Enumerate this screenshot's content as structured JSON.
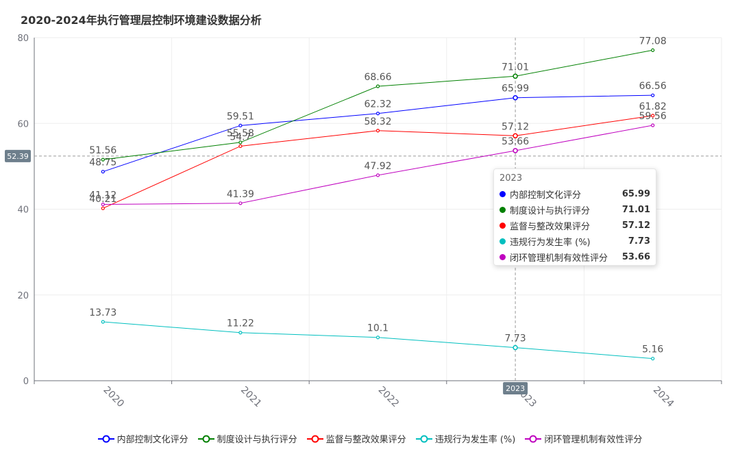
{
  "chart_data": {
    "type": "line",
    "title": "2020-2024年执行管理层控制环境建设数据分析",
    "categories": [
      "2020",
      "2021",
      "2022",
      "2023",
      "2024"
    ],
    "ylim": [
      0,
      80
    ],
    "yticks": [
      0,
      20,
      40,
      60,
      80
    ],
    "grid": true,
    "legend_position": "bottom",
    "series": [
      {
        "name": "内部控制文化评分",
        "color": "#0000ff",
        "values": [
          48.75,
          59.51,
          62.32,
          65.99,
          66.56
        ],
        "labels": [
          "48.75",
          "59.51",
          "62.32",
          "65.99",
          "66.56"
        ]
      },
      {
        "name": "制度设计与执行评分",
        "color": "#008000",
        "values": [
          51.56,
          55.58,
          68.66,
          71.01,
          77.08
        ],
        "labels": [
          "51.56",
          "55.58",
          "68.66",
          "71.01",
          "77.08"
        ]
      },
      {
        "name": "监督与整改效果评分",
        "color": "#ff0000",
        "values": [
          40.21,
          54.7,
          58.32,
          57.12,
          61.82
        ],
        "labels": [
          "40.21",
          "54.7",
          "58.32",
          "57.12",
          "61.82"
        ]
      },
      {
        "name": "违规行为发生率 (%)",
        "color": "#00bfbf",
        "values": [
          13.73,
          11.22,
          10.1,
          7.73,
          5.16
        ],
        "labels": [
          "13.73",
          "11.22",
          "10.1",
          "7.73",
          "5.16"
        ]
      },
      {
        "name": "闭环管理机制有效性评分",
        "color": "#bf00bf",
        "values": [
          41.12,
          41.39,
          47.92,
          53.66,
          59.56
        ],
        "labels": [
          "41.12",
          "41.39",
          "47.92",
          "53.66",
          "59.56"
        ]
      }
    ],
    "crosshair": {
      "x_category": "2023",
      "y_value": 52.39,
      "x_label": "2023",
      "y_label": "52.39"
    },
    "tooltip": {
      "header": "2023",
      "rows": [
        {
          "name": "内部控制文化评分",
          "value": "65.99",
          "color": "#0000ff"
        },
        {
          "name": "制度设计与执行评分",
          "value": "71.01",
          "color": "#008000"
        },
        {
          "name": "监督与整改效果评分",
          "value": "57.12",
          "color": "#ff0000"
        },
        {
          "name": "违规行为发生率 (%)",
          "value": "7.73",
          "color": "#00bfbf"
        },
        {
          "name": "闭环管理机制有效性评分",
          "value": "53.66",
          "color": "#bf00bf"
        }
      ]
    }
  }
}
